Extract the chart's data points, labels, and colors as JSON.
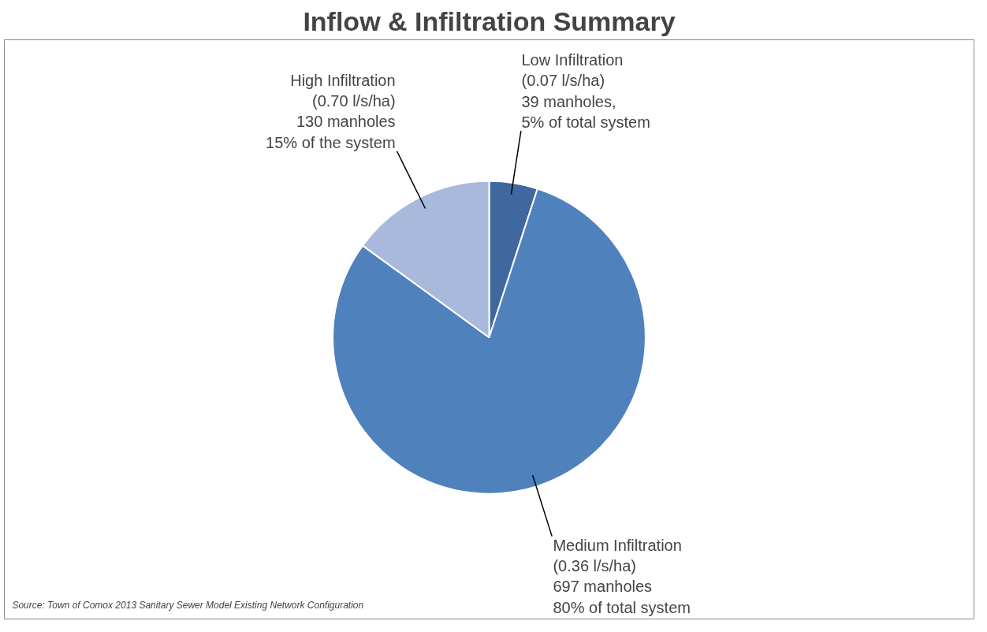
{
  "chart_data": {
    "type": "pie",
    "title": "Inflow & Infiltration Summary",
    "categories": [
      "Low Infiltration",
      "Medium Infiltration",
      "High Infiltration"
    ],
    "values": [
      5,
      80,
      15
    ],
    "value_labels": [
      "(0.07 l/s/ha)\n39 manholes,\n5% of total system",
      "(0.36 l/s/ha)\n697 manholes\n80% of total system",
      "(0.70 l/s/ha)\n130 manholes\n15% of the system"
    ],
    "colors": [
      "#3f689f",
      "#4f81bd",
      "#a9b9dc"
    ],
    "annotations": [
      "Source: Town of Comox 2013 Sanitary Sewer Model Existing Network Configuration"
    ]
  }
}
